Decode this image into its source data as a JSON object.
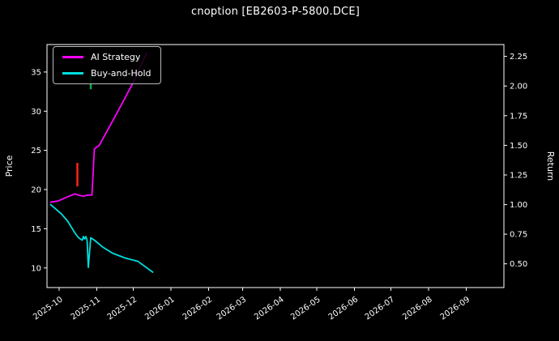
{
  "title": "cnoption [EB2603-P-5800.DCE]",
  "colors": {
    "background": "#000000",
    "foreground": "#ffffff",
    "ai_strategy": "#ff00ff",
    "buy_and_hold": "#00dddd",
    "candle_down": "#ff2020",
    "candle_up": "#00b050"
  },
  "chart_data": {
    "type": "line",
    "title": "cnoption [EB2603-P-5800.DCE]",
    "xlabel": "",
    "grid": false,
    "background": "dark",
    "x_range": [
      "2025-09-21",
      "2026-10-02"
    ],
    "x_ticks": [
      {
        "date": "2025-10-01",
        "label": "2025-10"
      },
      {
        "date": "2025-11-01",
        "label": "2025-11"
      },
      {
        "date": "2025-12-01",
        "label": "2025-12"
      },
      {
        "date": "2026-01-01",
        "label": "2026-01"
      },
      {
        "date": "2026-02-01",
        "label": "2026-02"
      },
      {
        "date": "2026-03-01",
        "label": "2026-03"
      },
      {
        "date": "2026-04-01",
        "label": "2026-04"
      },
      {
        "date": "2026-05-01",
        "label": "2026-05"
      },
      {
        "date": "2026-06-01",
        "label": "2026-06"
      },
      {
        "date": "2026-07-01",
        "label": "2026-07"
      },
      {
        "date": "2026-08-01",
        "label": "2026-08"
      },
      {
        "date": "2026-09-01",
        "label": "2026-09"
      }
    ],
    "left_axis": {
      "label": "Price",
      "ticks": [
        10,
        15,
        20,
        25,
        30,
        35
      ],
      "range": [
        7.5,
        38.5
      ]
    },
    "right_axis": {
      "label": "Return",
      "tick_labels": [
        "0.50",
        "0.75",
        "1.00",
        "1.25",
        "1.50",
        "1.75",
        "2.00",
        "2.25"
      ],
      "range": [
        0.3,
        2.35
      ]
    },
    "legend": {
      "position": "upper-left",
      "entries": [
        "AI Strategy",
        "Buy-and-Hold"
      ]
    },
    "series": [
      {
        "name": "AI Strategy",
        "color": "#ff00ff",
        "axis": "right",
        "points": [
          [
            "2025-09-24",
            1.02
          ],
          [
            "2025-09-30",
            1.03
          ],
          [
            "2025-10-09",
            1.07
          ],
          [
            "2025-10-14",
            1.09
          ],
          [
            "2025-10-17",
            1.08
          ],
          [
            "2025-10-21",
            1.07
          ],
          [
            "2025-10-24",
            1.08
          ],
          [
            "2025-10-28",
            1.08
          ],
          [
            "2025-10-30",
            1.47
          ],
          [
            "2025-11-03",
            1.5
          ],
          [
            "2025-11-18",
            1.78
          ],
          [
            "2025-12-02",
            2.05
          ],
          [
            "2025-12-12",
            2.28
          ]
        ]
      },
      {
        "name": "Buy-and-Hold",
        "color": "#00dddd",
        "axis": "right",
        "points": [
          [
            "2025-09-24",
            1.0
          ],
          [
            "2025-10-03",
            0.92
          ],
          [
            "2025-10-08",
            0.86
          ],
          [
            "2025-10-14",
            0.76
          ],
          [
            "2025-10-17",
            0.72
          ],
          [
            "2025-10-20",
            0.7
          ],
          [
            "2025-10-21",
            0.73
          ],
          [
            "2025-10-22",
            0.71
          ],
          [
            "2025-10-23",
            0.73
          ],
          [
            "2025-10-24",
            0.7
          ],
          [
            "2025-10-25",
            0.47
          ],
          [
            "2025-10-27",
            0.72
          ],
          [
            "2025-10-30",
            0.7
          ],
          [
            "2025-11-06",
            0.64
          ],
          [
            "2025-11-14",
            0.59
          ],
          [
            "2025-11-24",
            0.55
          ],
          [
            "2025-12-05",
            0.52
          ],
          [
            "2025-12-17",
            0.43
          ]
        ]
      }
    ],
    "price_markers": [
      {
        "date": "2025-10-16",
        "low": 20.4,
        "high": 23.4,
        "color": "#ff2020",
        "kind": "down-candle"
      },
      {
        "date": "2025-10-27",
        "low": 32.8,
        "high": 34.4,
        "color": "#00b050",
        "kind": "up-candle"
      }
    ]
  }
}
